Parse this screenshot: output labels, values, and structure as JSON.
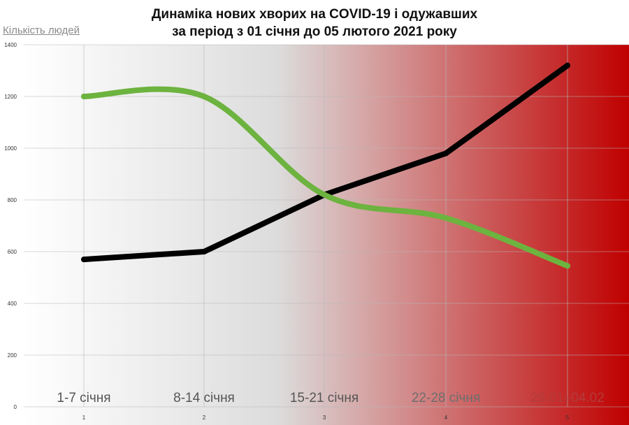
{
  "chart_data": {
    "type": "line",
    "title_lines": [
      "Динаміка нових хворих на COVID-19 і одужавших",
      "за період з 01 січня до 05 лютого 2021 року"
    ],
    "ylabel": "Кількість людей",
    "xlabel": "",
    "categories": [
      "1-7 січня",
      "8-14 січня",
      "15-21 січня",
      "22-28 січня",
      "29.01–04.02"
    ],
    "x_ticks": [
      "1",
      "2",
      "3",
      "4",
      "5"
    ],
    "y_ticks": [
      0,
      200,
      400,
      600,
      800,
      1000,
      1200,
      1400
    ],
    "ylim": [
      0,
      1400
    ],
    "grid": true,
    "legend": "none",
    "background": {
      "left_color": "#ffffff",
      "mid_color": "#dcdcdc",
      "right_color": "#c00000"
    },
    "series": [
      {
        "values": [
          570,
          600,
          820,
          980,
          1320
        ],
        "color": "#000000",
        "smooth": false
      },
      {
        "values": [
          1200,
          1200,
          820,
          730,
          545
        ],
        "color": "#6db33f",
        "smooth": true
      }
    ]
  }
}
